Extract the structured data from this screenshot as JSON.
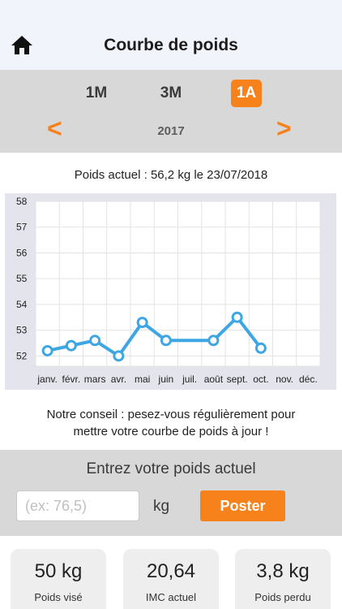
{
  "header": {
    "title": "Courbe de poids",
    "home_icon": "home-icon"
  },
  "period": {
    "tabs": [
      {
        "label": "1M",
        "active": false
      },
      {
        "label": "3M",
        "active": false
      },
      {
        "label": "1A",
        "active": true
      }
    ],
    "prev_label": "<",
    "next_label": ">",
    "year": "2017"
  },
  "current_weight": "Poids actuel : 56,2 kg le 23/07/2018",
  "chart_data": {
    "type": "line",
    "categories": [
      "janv.",
      "févr.",
      "mars",
      "avr.",
      "mai",
      "juin",
      "juil.",
      "août",
      "sept.",
      "oct.",
      "nov.",
      "déc."
    ],
    "y_ticks": [
      "52",
      "53",
      "54",
      "55",
      "56",
      "57",
      "58"
    ],
    "ylim": [
      51.6,
      58
    ],
    "series": [
      {
        "values": [
          52.2,
          52.4,
          52.6,
          52.0,
          53.3,
          52.6,
          null,
          52.6,
          53.5,
          52.3,
          null,
          null
        ]
      }
    ],
    "grid": true,
    "line_color": "#3fa6e4",
    "grid_color": "#e3e3e3"
  },
  "advice": {
    "line1": "Notre conseil : pesez-vous régulièrement pour",
    "line2": "mettre votre courbe de poids à jour !"
  },
  "form": {
    "title": "Entrez votre poids actuel",
    "input_value": "",
    "input_placeholder": "(ex: 76,5)",
    "unit": "kg",
    "button_label": "Poster"
  },
  "stats": [
    {
      "value": "50 kg",
      "label": "Poids visé"
    },
    {
      "value": "20,64",
      "label": "IMC actuel"
    },
    {
      "value": "3,8 kg",
      "label": "Poids perdu"
    }
  ],
  "colors": {
    "accent": "#f7821b",
    "header_bg": "#f1f5fb",
    "panel_bg": "#d8d8d8"
  }
}
